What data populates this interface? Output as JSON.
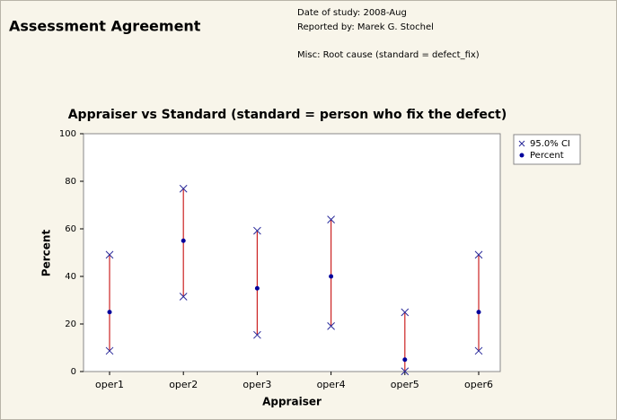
{
  "header": {
    "title": "Assessment Agreement",
    "date": "Date of study: 2008-Aug",
    "reported_by": "Reported by: Marek G. Stochel",
    "misc": "Misc: Root cause (standard = defect_fix)"
  },
  "chart_data": {
    "type": "interval",
    "title": "Appraiser vs Standard (standard = person who fix the defect)",
    "x_label": "Appraiser",
    "y_label": "Percent",
    "categories": [
      "oper1",
      "oper2",
      "oper3",
      "oper4",
      "oper5",
      "oper6"
    ],
    "series": [
      {
        "name": "95.0% CI",
        "color": "#2a2a9a",
        "line_color": "#cc2222",
        "lower": [
          8.7,
          31.5,
          15.4,
          19.1,
          0.1,
          8.7
        ],
        "upper": [
          49.1,
          76.9,
          59.2,
          63.9,
          24.9,
          49.1
        ]
      },
      {
        "name": "Percent",
        "color": "#00009c",
        "values": [
          25,
          55,
          35,
          40,
          5,
          25
        ]
      }
    ],
    "ylim": [
      0,
      100
    ],
    "yticks": [
      0,
      20,
      40,
      60,
      80,
      100
    ],
    "grid": false,
    "legend": "right"
  }
}
